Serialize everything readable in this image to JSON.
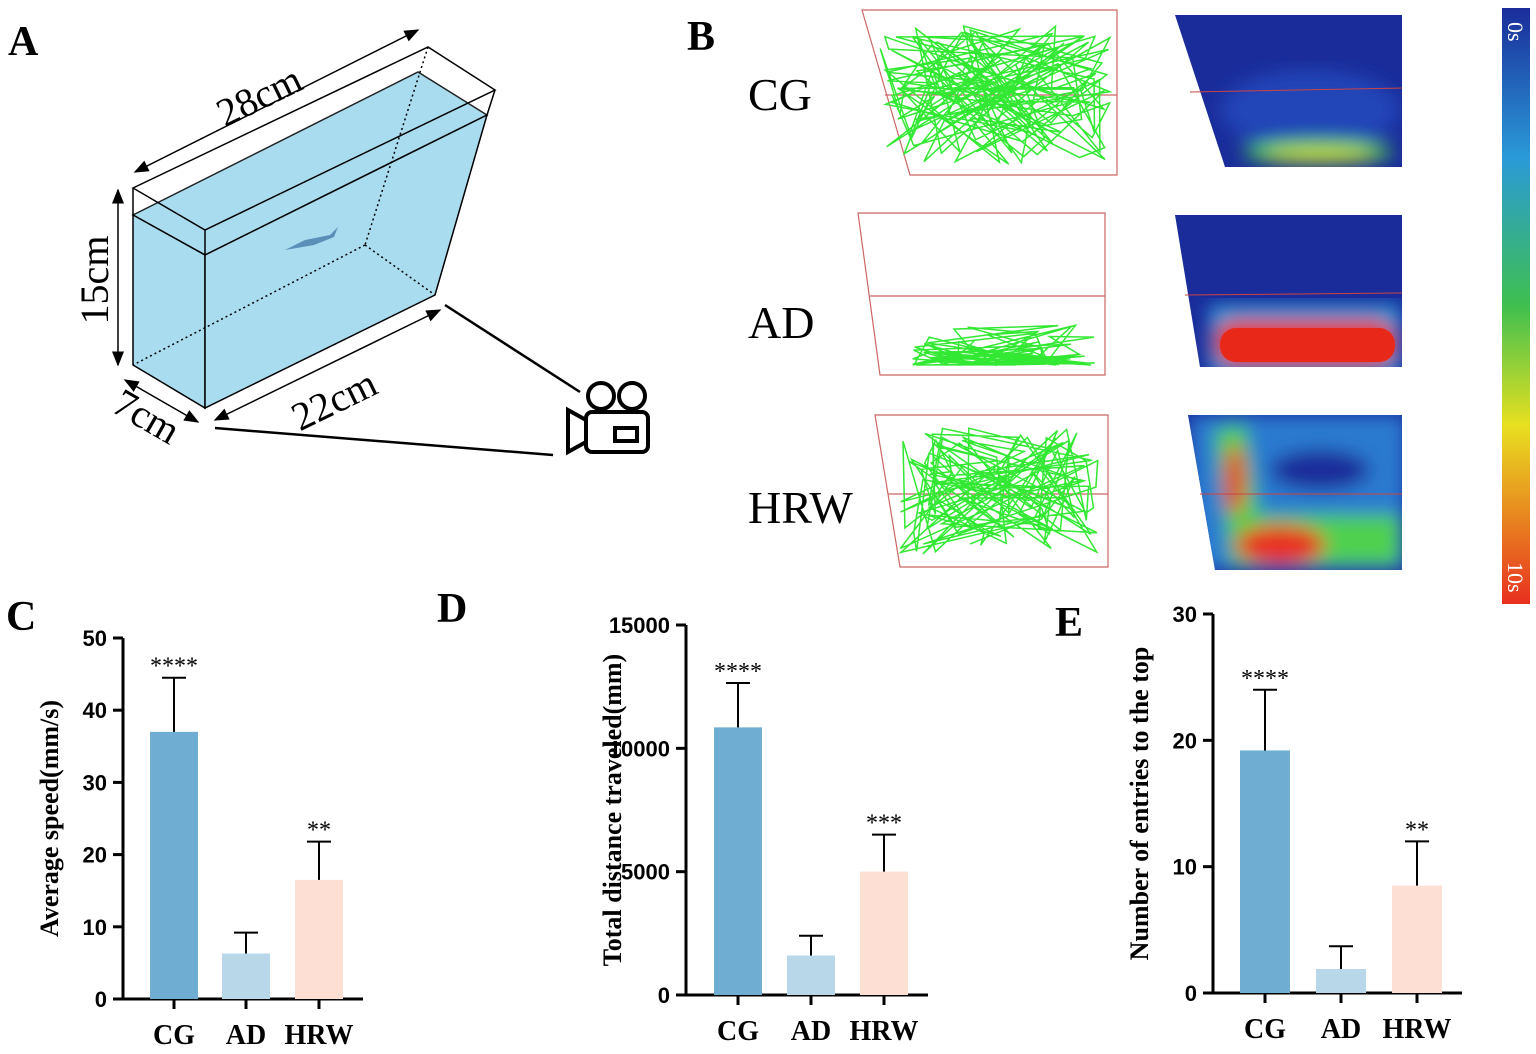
{
  "panels": {
    "a": "A",
    "b": "B",
    "c": "C",
    "d": "D",
    "e": "E"
  },
  "tank": {
    "length": "28cm",
    "height": "15cm",
    "bottom": "22cm",
    "depth": "7cm"
  },
  "groups": [
    "CG",
    "AD",
    "HRW"
  ],
  "colorbar": {
    "top": "0s",
    "bottom": "10s"
  },
  "chart_data": [
    {
      "type": "bar",
      "ylabel": "Average speed(mm/s)",
      "categories": [
        "CG",
        "AD",
        "HRW"
      ],
      "values": [
        37,
        6.3,
        16.5
      ],
      "errors": [
        7.5,
        2.9,
        5.3
      ],
      "annotations": [
        "****",
        null,
        "**"
      ],
      "colors": [
        "#6fadd2",
        "#b8d8ea",
        "#fde0d3"
      ],
      "ylim": [
        0,
        50
      ],
      "yticks": [
        0,
        10,
        20,
        30,
        40,
        50
      ]
    },
    {
      "type": "bar",
      "ylabel": "Total distance traveled(mm)",
      "categories": [
        "CG",
        "AD",
        "HRW"
      ],
      "values": [
        10850,
        1600,
        5000
      ],
      "errors": [
        1800,
        800,
        1500
      ],
      "annotations": [
        "****",
        null,
        "***"
      ],
      "colors": [
        "#6fadd2",
        "#b8d8ea",
        "#fde0d3"
      ],
      "ylim": [
        0,
        15000
      ],
      "yticks": [
        0,
        5000,
        10000,
        15000
      ]
    },
    {
      "type": "bar",
      "ylabel": "Number of entries to the top",
      "categories": [
        "CG",
        "AD",
        "HRW"
      ],
      "values": [
        19.2,
        1.9,
        8.5
      ],
      "errors": [
        4.8,
        1.8,
        3.5
      ],
      "annotations": [
        "****",
        null,
        "**"
      ],
      "colors": [
        "#6fadd2",
        "#b8d8ea",
        "#fde0d3"
      ],
      "ylim": [
        0,
        30
      ],
      "yticks": [
        0,
        10,
        20,
        30
      ]
    }
  ]
}
